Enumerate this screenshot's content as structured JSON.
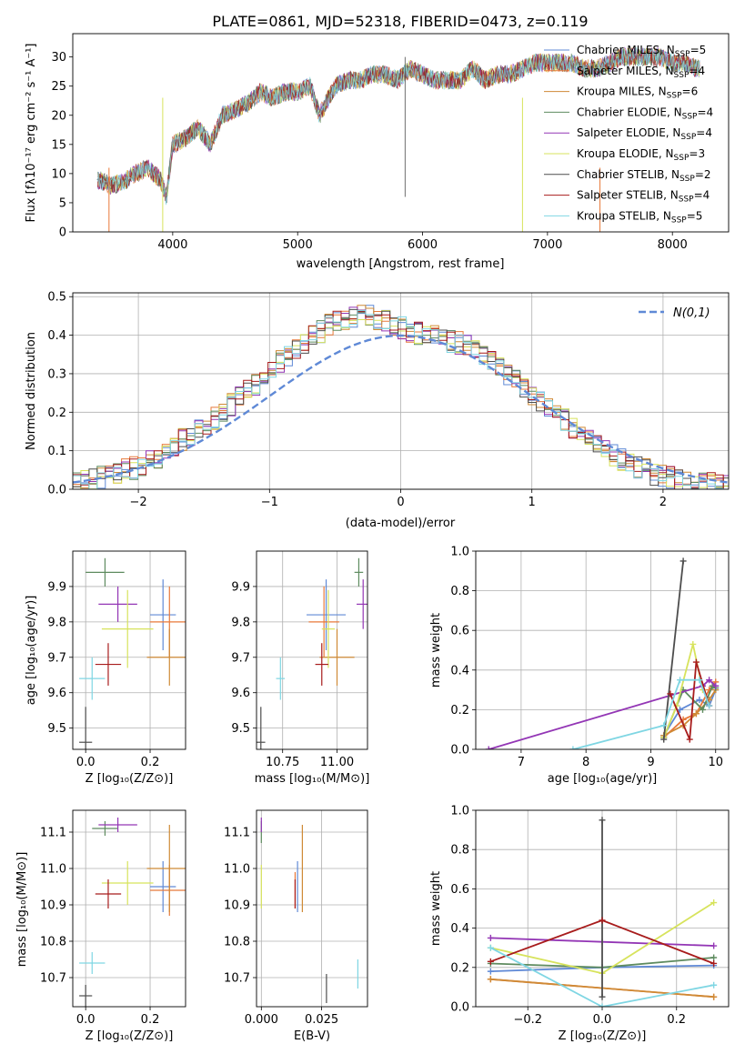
{
  "figure_title": "PLATE=0861, MJD=52318, FIBERID=0473, z=0.119",
  "series_colors": [
    "#5f89d6",
    "#e8793a",
    "#cf8a36",
    "#5e8b5f",
    "#9336b5",
    "#d7e35c",
    "#4d4d4d",
    "#a81c1c",
    "#7fd6e3"
  ],
  "spectrum_legend": [
    "Chabrier MILES, N$_{SSP}$=5",
    "Salpeter MILES, N$_{SSP}$=4",
    "Kroupa MILES, N$_{SSP}$=6",
    "Chabrier ELODIE, N$_{SSP}$=4",
    "Salpeter ELODIE, N$_{SSP}$=4",
    "Kroupa ELODIE, N$_{SSP}$=3",
    "Chabrier STELIB, N$_{SSP}$=2",
    "Salpeter STELIB, N$_{SSP}$=4",
    "Kroupa STELIB, N$_{SSP}$=5"
  ],
  "chart_data": [
    {
      "id": "spectrum",
      "type": "line",
      "xlabel": "wavelength [Angstrom, rest frame]",
      "ylabel": "Flux [f$_\\lambda$10$^{-17}$ erg cm$^{-2}$ s$^{-1}$ A$^{-1}$]",
      "xlim": [
        3200,
        8450
      ],
      "ylim": [
        0,
        34
      ],
      "xticks": [
        4000,
        5000,
        6000,
        7000,
        8000
      ],
      "yticks": [
        0,
        5,
        10,
        15,
        20,
        25,
        30
      ],
      "grid": false,
      "legend_position": "right",
      "x": [
        3400,
        3500,
        3600,
        3700,
        3800,
        3900,
        3950,
        4000,
        4100,
        4200,
        4300,
        4400,
        4500,
        4600,
        4700,
        4800,
        4900,
        5000,
        5100,
        5175,
        5300,
        5400,
        5500,
        5600,
        5700,
        5800,
        5900,
        6000,
        6100,
        6200,
        6300,
        6400,
        6500,
        6600,
        6700,
        6800,
        6900,
        7000,
        7100,
        7200,
        7300,
        7400,
        7500,
        7600,
        7700,
        7800,
        7900,
        8000,
        8100,
        8200
      ],
      "y": [
        9,
        8,
        8.5,
        10,
        11,
        9,
        6,
        15,
        16,
        18,
        15,
        20,
        21,
        22,
        24,
        23,
        24,
        24,
        25,
        20,
        25,
        26,
        26,
        27,
        27,
        26,
        28,
        27,
        26,
        26,
        26,
        28,
        26,
        27,
        27,
        28,
        29,
        29,
        29,
        29,
        28,
        28,
        29,
        30,
        30,
        30,
        30,
        29,
        29,
        28
      ]
    },
    {
      "id": "residuals",
      "type": "line",
      "xlabel": "(data-model)/error",
      "ylabel": "Normed distribution",
      "xlim": [
        -2.5,
        2.5
      ],
      "ylim": [
        0,
        0.51
      ],
      "xticks": [
        -2,
        -1,
        0,
        1,
        2
      ],
      "yticks": [
        0.0,
        0.1,
        0.2,
        0.3,
        0.4,
        0.5
      ],
      "grid": true,
      "legend": [
        "$\\mathcal{N}(0,1)$"
      ],
      "bin_width": 0.1,
      "bin_start": -2.5,
      "histogram_values": [
        0.02,
        0.02,
        0.025,
        0.03,
        0.035,
        0.04,
        0.05,
        0.055,
        0.065,
        0.075,
        0.085,
        0.095,
        0.115,
        0.13,
        0.14,
        0.16,
        0.17,
        0.185,
        0.2,
        0.22,
        0.24,
        0.26,
        0.27,
        0.29,
        0.31,
        0.33,
        0.35,
        0.365,
        0.38,
        0.395,
        0.41,
        0.425,
        0.435,
        0.44,
        0.445,
        0.45,
        0.45,
        0.44,
        0.44,
        0.43,
        0.42,
        0.41,
        0.405,
        0.4,
        0.4,
        0.39,
        0.385,
        0.38,
        0.37,
        0.36,
        0.35,
        0.34,
        0.32,
        0.3,
        0.28,
        0.26,
        0.24,
        0.23,
        0.22,
        0.2,
        0.18,
        0.16,
        0.14,
        0.13,
        0.115,
        0.1,
        0.09,
        0.075,
        0.065,
        0.055,
        0.05,
        0.04,
        0.035,
        0.03,
        0.025,
        0.02,
        0.02,
        0.015,
        0.015,
        0.01,
        0.01
      ],
      "reference_curve": "N(0,1) Gaussian"
    },
    {
      "id": "age_vs_Z",
      "type": "scatter",
      "xlabel": "Z [log$_{10}$($Z/Z_\\odot$)]",
      "ylabel": "age  [log$_{10}$($age/yr$)]",
      "xlim": [
        -0.04,
        0.31
      ],
      "ylim": [
        9.44,
        10.0
      ],
      "xticks": [
        0.0,
        0.2
      ],
      "yticks": [
        9.5,
        9.6,
        9.7,
        9.8,
        9.9
      ],
      "grid": true,
      "points": [
        {
          "x": 0.24,
          "y": 9.82,
          "xerr": 0.04,
          "yerr": 0.1
        },
        {
          "x": 0.26,
          "y": 9.8,
          "xerr": 0.06,
          "yerr": 0.1
        },
        {
          "x": 0.26,
          "y": 9.7,
          "xerr": 0.07,
          "yerr": 0.08
        },
        {
          "x": 0.06,
          "y": 9.94,
          "xerr": 0.06,
          "yerr": 0.04
        },
        {
          "x": 0.1,
          "y": 9.85,
          "xerr": 0.06,
          "yerr": 0.05
        },
        {
          "x": 0.13,
          "y": 9.78,
          "xerr": 0.08,
          "yerr": 0.11
        },
        {
          "x": 0.0,
          "y": 9.46,
          "xerr": 0.02,
          "yerr": 0.1
        },
        {
          "x": 0.07,
          "y": 9.68,
          "xerr": 0.04,
          "yerr": 0.06
        },
        {
          "x": 0.02,
          "y": 9.64,
          "xerr": 0.04,
          "yerr": 0.06
        }
      ]
    },
    {
      "id": "age_vs_mass",
      "type": "scatter",
      "xlabel": "mass [log$_{10}$($M/M_\\odot$)]",
      "ylabel": "",
      "xlim": [
        10.63,
        11.14
      ],
      "ylim": [
        9.44,
        10.0
      ],
      "xticks": [
        10.75,
        11.0
      ],
      "yticks": [
        9.5,
        9.6,
        9.7,
        9.8,
        9.9
      ],
      "grid": true,
      "points": [
        {
          "x": 10.95,
          "y": 9.82,
          "xerr": 0.09,
          "yerr": 0.1
        },
        {
          "x": 10.94,
          "y": 9.8,
          "xerr": 0.07,
          "yerr": 0.1
        },
        {
          "x": 11.0,
          "y": 9.7,
          "xerr": 0.08,
          "yerr": 0.08
        },
        {
          "x": 11.1,
          "y": 9.94,
          "xerr": 0.02,
          "yerr": 0.04
        },
        {
          "x": 11.12,
          "y": 9.85,
          "xerr": 0.03,
          "yerr": 0.07
        },
        {
          "x": 10.96,
          "y": 9.78,
          "xerr": 0.03,
          "yerr": 0.11
        },
        {
          "x": 10.65,
          "y": 9.46,
          "xerr": 0.02,
          "yerr": 0.1
        },
        {
          "x": 10.93,
          "y": 9.68,
          "xerr": 0.03,
          "yerr": 0.06
        },
        {
          "x": 10.74,
          "y": 9.64,
          "xerr": 0.02,
          "yerr": 0.06
        }
      ]
    },
    {
      "id": "weight_vs_age",
      "type": "line",
      "xlabel": "age  [log$_{10}$($age/yr$)]",
      "ylabel": "mass weight",
      "xlim": [
        6.3,
        10.2
      ],
      "ylim": [
        0,
        1.0
      ],
      "xticks": [
        7,
        8,
        9,
        10
      ],
      "yticks": [
        0.0,
        0.2,
        0.4,
        0.6,
        0.8,
        1.0
      ],
      "grid": true,
      "series": [
        {
          "x": [
            9.2,
            9.45,
            9.75,
            9.9,
            10.0
          ],
          "values": [
            0.07,
            0.2,
            0.25,
            0.22,
            0.3
          ]
        },
        {
          "x": [
            9.2,
            9.5,
            9.7,
            9.9,
            10.0
          ],
          "values": [
            0.06,
            0.15,
            0.18,
            0.3,
            0.34
          ]
        },
        {
          "x": [
            9.2,
            9.5,
            9.7,
            9.9,
            10.0
          ],
          "values": [
            0.07,
            0.12,
            0.18,
            0.25,
            0.3
          ]
        },
        {
          "x": [
            9.2,
            9.5,
            9.8,
            9.95,
            10.0
          ],
          "values": [
            0.06,
            0.3,
            0.2,
            0.32,
            0.31
          ]
        },
        {
          "x": [
            6.5,
            9.8,
            9.9,
            10.0
          ],
          "values": [
            0.0,
            0.32,
            0.35,
            0.32
          ]
        },
        {
          "x": [
            9.2,
            9.4,
            9.65,
            9.8
          ],
          "values": [
            0.06,
            0.22,
            0.53,
            0.3
          ]
        },
        {
          "x": [
            9.2,
            9.5
          ],
          "values": [
            0.05,
            0.95
          ]
        },
        {
          "x": [
            9.3,
            9.6,
            9.7,
            9.9
          ],
          "values": [
            0.28,
            0.05,
            0.44,
            0.22
          ]
        },
        {
          "x": [
            7.8,
            9.2,
            9.45,
            9.75,
            9.9
          ],
          "values": [
            0.0,
            0.12,
            0.35,
            0.35,
            0.22
          ]
        }
      ]
    },
    {
      "id": "mass_vs_Z",
      "type": "scatter",
      "xlabel": "Z [log$_{10}$($Z/Z_\\odot$)]",
      "ylabel": "mass [log$_{10}$($M/M_\\odot$)]",
      "xlim": [
        -0.04,
        0.31
      ],
      "ylim": [
        10.62,
        11.16
      ],
      "xticks": [
        0.0,
        0.2
      ],
      "yticks": [
        10.7,
        10.8,
        10.9,
        11.0,
        11.1
      ],
      "grid": true,
      "points": [
        {
          "x": 0.24,
          "y": 10.95,
          "xerr": 0.04,
          "yerr": 0.07
        },
        {
          "x": 0.26,
          "y": 10.94,
          "xerr": 0.06,
          "yerr": 0.07
        },
        {
          "x": 0.26,
          "y": 11.0,
          "xerr": 0.07,
          "yerr": 0.12
        },
        {
          "x": 0.06,
          "y": 11.11,
          "xerr": 0.04,
          "yerr": 0.02
        },
        {
          "x": 0.1,
          "y": 11.12,
          "xerr": 0.06,
          "yerr": 0.02
        },
        {
          "x": 0.13,
          "y": 10.96,
          "xerr": 0.08,
          "yerr": 0.06
        },
        {
          "x": 0.0,
          "y": 10.65,
          "xerr": 0.02,
          "yerr": 0.03
        },
        {
          "x": 0.07,
          "y": 10.93,
          "xerr": 0.04,
          "yerr": 0.04
        },
        {
          "x": 0.02,
          "y": 10.74,
          "xerr": 0.04,
          "yerr": 0.03
        }
      ]
    },
    {
      "id": "mass_vs_EBV",
      "type": "scatter",
      "xlabel": "E(B-V)",
      "ylabel": "",
      "xlim": [
        -0.002,
        0.044
      ],
      "ylim": [
        10.62,
        11.16
      ],
      "xticks": [
        0.0,
        0.025
      ],
      "xtick_labels": [
        "0.000",
        "0.025"
      ],
      "yticks": [
        10.7,
        10.8,
        10.9,
        11.0,
        11.1
      ],
      "grid": true,
      "points": [
        {
          "x": 0.015,
          "y": 10.95,
          "yerr": 0.07
        },
        {
          "x": 0.014,
          "y": 10.94,
          "yerr": 0.05
        },
        {
          "x": 0.017,
          "y": 11.0,
          "yerr": 0.12
        },
        {
          "x": 0.0,
          "y": 11.1,
          "yerr": 0.03
        },
        {
          "x": 0.0,
          "y": 11.12,
          "yerr": 0.02
        },
        {
          "x": 0.0,
          "y": 10.95,
          "yerr": 0.06
        },
        {
          "x": 0.027,
          "y": 10.67,
          "yerr": 0.04
        },
        {
          "x": 0.014,
          "y": 10.93,
          "yerr": 0.04
        },
        {
          "x": 0.04,
          "y": 10.71,
          "yerr": 0.04
        }
      ]
    },
    {
      "id": "weight_vs_Z",
      "type": "line",
      "xlabel": "Z [log$_{10}$($Z/Z_\\odot$)]",
      "ylabel": "mass weight",
      "xlim": [
        -0.34,
        0.34
      ],
      "ylim": [
        0,
        1.0
      ],
      "xticks": [
        -0.2,
        0.0,
        0.2
      ],
      "yticks": [
        0.0,
        0.2,
        0.4,
        0.6,
        0.8,
        1.0
      ],
      "grid": true,
      "series": [
        {
          "x": [
            -0.3,
            0.0,
            0.3
          ],
          "values": [
            0.18,
            0.2,
            0.21
          ]
        },
        {
          "x": [
            -0.3,
            0.3
          ],
          "values": [
            0.14,
            0.05
          ]
        },
        {
          "x": [
            -0.3,
            0.3
          ],
          "values": [
            0.14,
            0.05
          ]
        },
        {
          "x": [
            -0.3,
            0.0,
            0.3
          ],
          "values": [
            0.22,
            0.2,
            0.25
          ]
        },
        {
          "x": [
            -0.3,
            0.0,
            0.3
          ],
          "values": [
            0.35,
            0.33,
            0.31
          ]
        },
        {
          "x": [
            -0.3,
            0.0,
            0.3
          ],
          "values": [
            0.3,
            0.17,
            0.53
          ]
        },
        {
          "x": [
            0.0,
            0.0
          ],
          "values": [
            0.05,
            0.95
          ]
        },
        {
          "x": [
            -0.3,
            0.0,
            0.3
          ],
          "values": [
            0.23,
            0.44,
            0.22
          ]
        },
        {
          "x": [
            -0.3,
            0.0,
            0.3
          ],
          "values": [
            0.3,
            0.0,
            0.11
          ]
        }
      ]
    }
  ]
}
